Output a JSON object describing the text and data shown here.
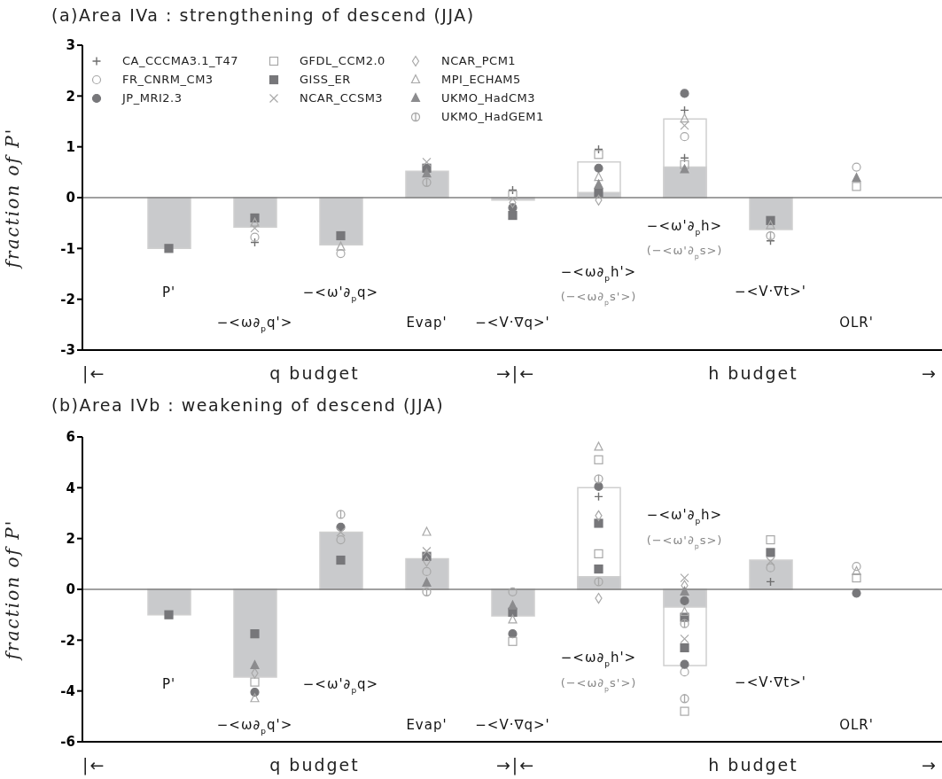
{
  "chart_data": [
    {
      "type": "bar",
      "title": "(a)Area IVa : strengthening of descend (JJA)",
      "ylabel": "fraction of P'",
      "categories": [
        "P'",
        "−<ω∂$_{p}$q'>",
        "−<ω'∂$_{p}$q>",
        "Evap'",
        "−<V·∇q>'",
        "−<ω∂$_{p}$h'>",
        "−<ω'∂$_{p}$h>",
        "−<V·∇t>'",
        "OLR'"
      ],
      "ylim": [
        -3,
        3
      ],
      "yticks": [
        -3,
        -2,
        -1,
        0,
        1,
        2,
        3
      ],
      "legend": "top left",
      "ref_lines": [
        {
          "axis": "y",
          "value": 0,
          "color": "#808080"
        }
      ],
      "annotations": [
        "|←",
        "q budget",
        "→|←",
        "h budget",
        "→",
        "(−<ω∂$_{p}$s'>)",
        "(−<ω'∂$_{p}$s>)"
      ],
      "series": [
        {
          "color": "#ffffff",
          "values": [
            null,
            null,
            null,
            null,
            null,
            0.7,
            1.55,
            null,
            null
          ]
        },
        {
          "color": "#c9cacc",
          "values": [
            -1,
            -0.58,
            -0.93,
            0.52,
            -0.05,
            0.1,
            0.6,
            -0.63,
            null
          ]
        },
        {
          "type": "scatter",
          "name": "CA_CCCMA3.1_T47",
          "color": "#6e6e6e",
          "marker": "plus",
          "values": [
            null,
            -0.88,
            null,
            null,
            0.15,
            null,
            0.78,
            -0.85,
            null
          ]
        },
        {
          "type": "scatter",
          "name": "FR_CNRM_CM3",
          "color": "#a8a8a8",
          "marker": "circle",
          "values": [
            null,
            -0.78,
            -1.1,
            null,
            null,
            null,
            null,
            null,
            0.6
          ]
        },
        {
          "type": "scatter",
          "name": "JP_MRI2.3",
          "color": "#77777a",
          "marker": "circle",
          "values": [
            null,
            null,
            null,
            null,
            -0.2,
            null,
            null,
            null,
            null
          ]
        },
        {
          "type": "scatter",
          "name": "GFDL_CCM2.0",
          "color": "#a8a8a8",
          "marker": "square",
          "values": [
            null,
            null,
            null,
            null,
            0.05,
            null,
            0.65,
            null,
            0.22
          ]
        },
        {
          "type": "scatter",
          "name": "GISS_ER",
          "color": "#77777a",
          "marker": "square",
          "values": [
            -1,
            -0.4,
            -0.75,
            0.58,
            -0.35,
            0.1,
            null,
            -0.45,
            null
          ]
        },
        {
          "type": "scatter",
          "name": "NCAR_CCSM3",
          "color": "#a8a8a8",
          "marker": "cross",
          "values": [
            null,
            -0.6,
            null,
            0.7,
            null,
            null,
            null,
            null,
            null
          ]
        },
        {
          "type": "scatter",
          "name": "NCAR_PCM1",
          "color": "#a8a8a8",
          "marker": "diamond",
          "values": [
            null,
            null,
            null,
            null,
            -0.1,
            -0.05,
            null,
            null,
            null
          ]
        },
        {
          "type": "scatter",
          "name": "MPI_ECHAM5",
          "color": "#a8a8a8",
          "marker": "triangle",
          "values": [
            null,
            -0.5,
            -0.97,
            null,
            null,
            0.4,
            null,
            -0.55,
            null
          ]
        },
        {
          "type": "scatter",
          "name": "UKMO_HadCM3",
          "color": "#8c8c8e",
          "marker": "triangle",
          "values": [
            null,
            null,
            null,
            0.47,
            null,
            0.25,
            0.55,
            null,
            0.38
          ]
        },
        {
          "type": "scatter",
          "name": "UKMO_HadGEM1",
          "color": "#a8a8a8",
          "values": [
            null,
            null,
            null,
            0.3,
            null,
            null,
            null,
            -0.75,
            null
          ]
        },
        {
          "type": "scatter",
          "color": "#6e6e6e",
          "marker": "plus",
          "values": [
            null,
            null,
            null,
            null,
            null,
            0.95,
            1.72,
            null,
            null
          ]
        },
        {
          "type": "scatter",
          "color": "#a8a8a8",
          "marker": "circle",
          "values": [
            null,
            null,
            null,
            null,
            null,
            null,
            1.2,
            null,
            null
          ]
        },
        {
          "type": "scatter",
          "color": "#77777a",
          "marker": "circle",
          "values": [
            null,
            null,
            null,
            null,
            null,
            0.58,
            2.05,
            null,
            null
          ]
        },
        {
          "type": "scatter",
          "color": "#a8a8a8",
          "marker": "square",
          "values": [
            null,
            null,
            null,
            null,
            null,
            0.85,
            null,
            null,
            null
          ]
        },
        {
          "type": "scatter",
          "color": "#a8a8a8",
          "marker": "cross",
          "values": [
            null,
            null,
            null,
            null,
            null,
            null,
            1.42,
            null,
            null
          ]
        },
        {
          "type": "scatter",
          "color": "#a8a8a8",
          "marker": "triangle",
          "values": [
            null,
            null,
            null,
            null,
            null,
            null,
            1.55,
            null,
            null
          ]
        }
      ]
    },
    {
      "type": "bar",
      "title": "(b)Area IVb : weakening of descend (JJA)",
      "ylabel": "fraction of P'",
      "categories": [
        "P'",
        "−<ω∂$_{p}$q'>",
        "−<ω'∂$_{p}$q>",
        "Evap'",
        "−<V·∇q>'",
        "−<ω∂$_{p}$h'>",
        "−<ω'∂$_{p}$h>",
        "−<V·∇t>'",
        "OLR'"
      ],
      "ylim": [
        -6,
        6
      ],
      "yticks": [
        -6,
        -4,
        -2,
        0,
        2,
        4,
        6
      ],
      "ref_lines": [
        {
          "axis": "y",
          "value": 0,
          "color": "#808080"
        }
      ],
      "annotations": [
        "|←",
        "q budget",
        "→|←",
        "h budget",
        "→",
        "(−<ω∂$_{p}$s'>)",
        "(−<ω'∂$_{p}$s>)"
      ],
      "series": [
        {
          "color": "#ffffff",
          "values": [
            null,
            null,
            null,
            null,
            null,
            4.0,
            -3.0,
            null,
            null
          ]
        },
        {
          "color": "#c9cacc",
          "values": [
            -1,
            -3.45,
            2.25,
            1.2,
            -1.05,
            0.5,
            -0.7,
            1.15,
            null
          ]
        },
        {
          "type": "scatter",
          "color": "#6e6e6e",
          "marker": "plus",
          "values": [
            null,
            null,
            null,
            null,
            null,
            null,
            null,
            0.3,
            null
          ]
        },
        {
          "type": "scatter",
          "color": "#a8a8a8",
          "marker": "circle",
          "values": [
            null,
            null,
            1.95,
            0.7,
            -0.1,
            null,
            null,
            0.85,
            0.9
          ]
        },
        {
          "type": "scatter",
          "color": "#77777a",
          "marker": "circle",
          "values": [
            null,
            -4.05,
            2.45,
            null,
            -1.75,
            null,
            -0.45,
            null,
            -0.15
          ]
        },
        {
          "type": "scatter",
          "color": "#a8a8a8",
          "marker": "square",
          "values": [
            null,
            -3.65,
            null,
            null,
            -2.05,
            1.4,
            null,
            1.95,
            0.45
          ]
        },
        {
          "type": "scatter",
          "color": "#77777a",
          "marker": "square",
          "values": [
            -1,
            -1.75,
            1.15,
            1.3,
            -0.9,
            0.8,
            -1.1,
            1.45,
            null
          ]
        },
        {
          "type": "scatter",
          "color": "#a8a8a8",
          "marker": "cross",
          "values": [
            null,
            null,
            2.25,
            1.5,
            null,
            null,
            0.45,
            1.1,
            null
          ]
        },
        {
          "type": "scatter",
          "color": "#a8a8a8",
          "marker": "diamond",
          "values": [
            null,
            -3.3,
            null,
            1.1,
            null,
            -0.35,
            0.15,
            null,
            null
          ]
        },
        {
          "type": "scatter",
          "color": "#a8a8a8",
          "marker": "triangle",
          "values": [
            null,
            -4.3,
            null,
            2.25,
            -1.2,
            null,
            -0.9,
            null,
            0.7
          ]
        },
        {
          "type": "scatter",
          "color": "#8c8c8e",
          "marker": "triangle",
          "values": [
            null,
            -3.0,
            null,
            0.25,
            -0.65,
            null,
            -0.1,
            null,
            null
          ]
        },
        {
          "type": "scatter",
          "color": "#a8a8a8",
          "values": [
            null,
            null,
            2.95,
            -0.1,
            null,
            0.3,
            -1.35,
            null,
            null
          ]
        },
        {
          "type": "scatter",
          "color": "#6e6e6e",
          "marker": "plus",
          "values": [
            null,
            null,
            null,
            null,
            null,
            3.65,
            null,
            null,
            null
          ]
        },
        {
          "type": "scatter",
          "color": "#a8a8a8",
          "marker": "circle",
          "values": [
            null,
            null,
            null,
            null,
            null,
            null,
            -3.25,
            null,
            null
          ]
        },
        {
          "type": "scatter",
          "color": "#77777a",
          "marker": "circle",
          "values": [
            null,
            null,
            null,
            null,
            null,
            4.05,
            -2.95,
            null,
            null
          ]
        },
        {
          "type": "scatter",
          "color": "#a8a8a8",
          "marker": "square",
          "values": [
            null,
            null,
            null,
            null,
            null,
            5.1,
            -4.8,
            null,
            null
          ]
        },
        {
          "type": "scatter",
          "color": "#77777a",
          "marker": "square",
          "values": [
            null,
            null,
            null,
            null,
            null,
            2.6,
            -2.3,
            null,
            null
          ]
        },
        {
          "type": "scatter",
          "color": "#a8a8a8",
          "marker": "cross",
          "values": [
            null,
            null,
            null,
            null,
            null,
            null,
            -1.95,
            null,
            null
          ]
        },
        {
          "type": "scatter",
          "color": "#a8a8a8",
          "marker": "diamond",
          "values": [
            null,
            null,
            null,
            null,
            null,
            2.9,
            null,
            null,
            null
          ]
        },
        {
          "type": "scatter",
          "color": "#a8a8a8",
          "marker": "triangle",
          "values": [
            null,
            null,
            null,
            null,
            null,
            5.6,
            null,
            null,
            null
          ]
        },
        {
          "type": "scatter",
          "color": "#a8a8a8",
          "values": [
            null,
            null,
            null,
            null,
            null,
            4.35,
            -4.3,
            null,
            null
          ]
        }
      ]
    }
  ]
}
